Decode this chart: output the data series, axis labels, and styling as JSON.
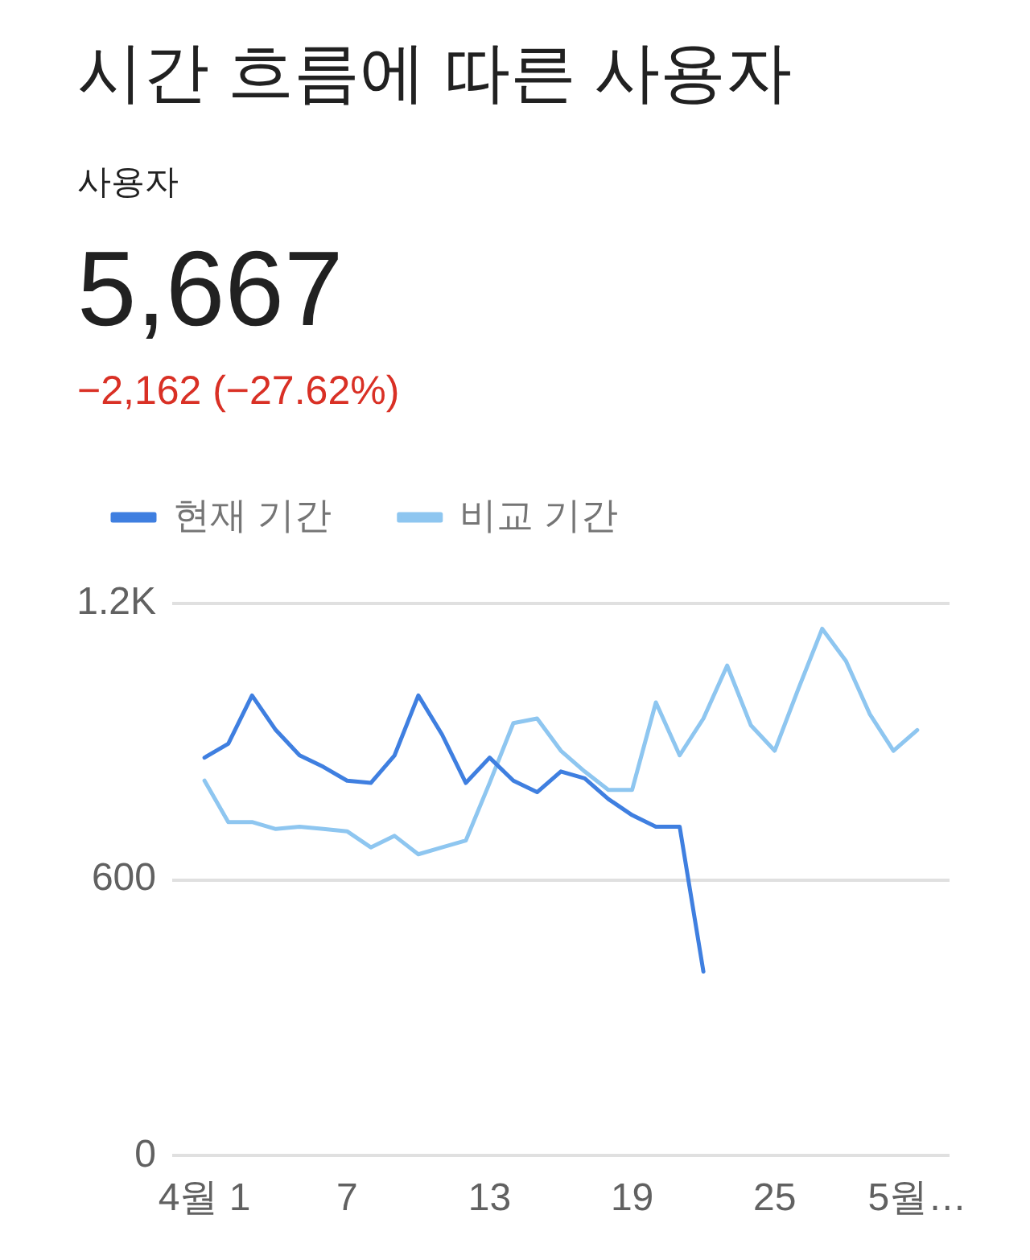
{
  "chart_data": {
    "type": "line",
    "title": "시간 흐름에 따른 사용자",
    "subtitle": "사용자",
    "annotations": [
      "5,667",
      "−2,162 (−27.62%)"
    ],
    "categories": [
      "4월 1",
      null,
      null,
      null,
      null,
      null,
      "7",
      null,
      null,
      null,
      null,
      null,
      "13",
      null,
      null,
      null,
      null,
      null,
      "19",
      null,
      null,
      null,
      null,
      null,
      "25",
      null,
      null,
      null,
      null,
      null,
      "5월…"
    ],
    "series": [
      {
        "name": "현재 기간",
        "color": "#3f7fe0",
        "values": [
          865,
          895,
          1000,
          925,
          870,
          845,
          815,
          810,
          870,
          1000,
          915,
          810,
          865,
          815,
          790,
          835,
          820,
          775,
          740,
          715,
          715,
          400,
          null,
          null,
          null,
          null,
          null,
          null,
          null,
          null,
          null
        ]
      },
      {
        "name": "비교 기간",
        "color": "#8ec6f0",
        "values": [
          815,
          725,
          725,
          710,
          715,
          710,
          705,
          670,
          695,
          655,
          670,
          685,
          810,
          940,
          950,
          880,
          835,
          795,
          795,
          985,
          870,
          950,
          1065,
          935,
          880,
          1015,
          1145,
          1075,
          960,
          880,
          925
        ]
      }
    ],
    "ylim": [
      0,
      1200
    ],
    "yticks": [
      0,
      600,
      {
        "value": 1200,
        "label": "1.2K"
      }
    ],
    "grid": "y",
    "legend": "top left"
  }
}
